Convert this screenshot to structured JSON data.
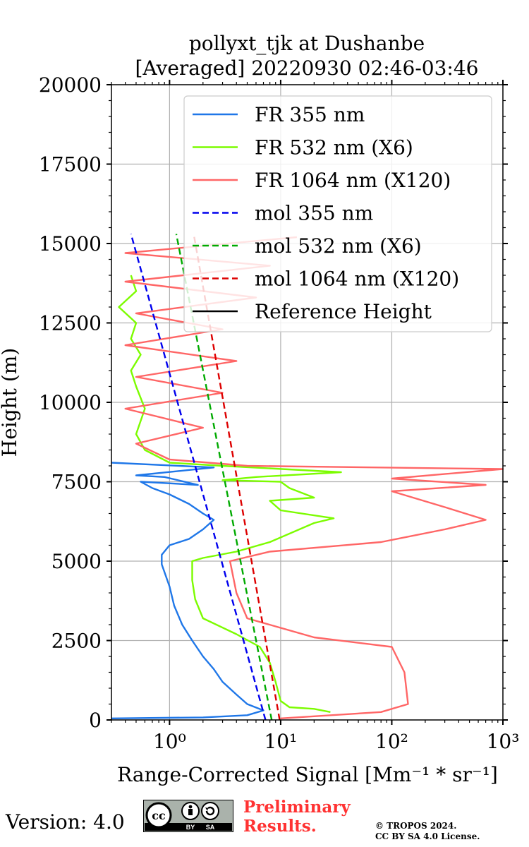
{
  "chart_data": {
    "type": "line",
    "title": "pollyxt_tjk at Dushanbe",
    "subtitle": "[Averaged] 20220930 02:46-03:46",
    "xlabel": "Range-Corrected Signal [Mm⁻¹ * sr⁻¹]",
    "ylabel": "Height (m)",
    "xscale": "log",
    "xlim": [
      0.3,
      1000
    ],
    "ylim": [
      0,
      20000
    ],
    "xticks": [
      {
        "value": 1,
        "label": "10⁰"
      },
      {
        "value": 10,
        "label": "10¹"
      },
      {
        "value": 100,
        "label": "10²"
      },
      {
        "value": 1000,
        "label": "10³"
      }
    ],
    "yticks": [
      0,
      2500,
      5000,
      7500,
      10000,
      12500,
      15000,
      17500,
      20000
    ],
    "grid": true,
    "legend_position": "upper right",
    "series": [
      {
        "name": "FR 355 nm",
        "color": "#1f77e8",
        "style": "solid",
        "points": [
          [
            0.3,
            50
          ],
          [
            2,
            80
          ],
          [
            5,
            150
          ],
          [
            7,
            300
          ],
          [
            5,
            500
          ],
          [
            4,
            800
          ],
          [
            3,
            1200
          ],
          [
            2.5,
            1600
          ],
          [
            2,
            2000
          ],
          [
            1.6,
            2500
          ],
          [
            1.3,
            3000
          ],
          [
            1.1,
            3600
          ],
          [
            1,
            4200
          ],
          [
            0.85,
            4900
          ],
          [
            0.85,
            5200
          ],
          [
            1,
            5500
          ],
          [
            1.5,
            5700
          ],
          [
            2,
            6000
          ],
          [
            2.5,
            6300
          ],
          [
            2,
            6500
          ],
          [
            1.5,
            6800
          ],
          [
            1,
            7100
          ],
          [
            0.7,
            7300
          ],
          [
            0.55,
            7500
          ],
          [
            1.8,
            7400
          ],
          [
            0.9,
            7650
          ],
          [
            0.5,
            7700
          ],
          [
            2.5,
            7950
          ],
          [
            0.3,
            8100
          ]
        ]
      },
      {
        "name": "FR 532 nm (X6)",
        "color": "#7cfc00",
        "style": "solid",
        "points": [
          [
            28,
            250
          ],
          [
            20,
            350
          ],
          [
            12,
            400
          ],
          [
            10,
            600
          ],
          [
            9,
            1200
          ],
          [
            8,
            1800
          ],
          [
            6.5,
            2300
          ],
          [
            4,
            2700
          ],
          [
            2,
            3200
          ],
          [
            1.7,
            3800
          ],
          [
            1.6,
            4400
          ],
          [
            1.6,
            5000
          ],
          [
            2,
            5100
          ],
          [
            4,
            5300
          ],
          [
            8,
            5600
          ],
          [
            20,
            6200
          ],
          [
            30,
            6350
          ],
          [
            10,
            6600
          ],
          [
            8,
            6900
          ],
          [
            20,
            7000
          ],
          [
            12,
            7300
          ],
          [
            10,
            7500
          ],
          [
            3,
            7550
          ],
          [
            6,
            7650
          ],
          [
            35,
            7800
          ],
          [
            3,
            8000
          ],
          [
            1,
            8100
          ],
          [
            0.6,
            8500
          ],
          [
            0.5,
            9000
          ],
          [
            0.6,
            9800
          ],
          [
            0.5,
            10500
          ],
          [
            0.45,
            11000
          ],
          [
            0.55,
            11500
          ],
          [
            0.45,
            12000
          ],
          [
            0.5,
            12500
          ],
          [
            0.35,
            13000
          ],
          [
            0.5,
            13500
          ],
          [
            0.45,
            14000
          ]
        ]
      },
      {
        "name": "FR 1064 nm (X120)",
        "color": "#ff6666",
        "style": "solid",
        "points": [
          [
            10,
            50
          ],
          [
            80,
            250
          ],
          [
            140,
            500
          ],
          [
            130,
            1500
          ],
          [
            100,
            2300
          ],
          [
            20,
            2600
          ],
          [
            5,
            3200
          ],
          [
            4,
            4000
          ],
          [
            3.5,
            5000
          ],
          [
            8,
            5300
          ],
          [
            80,
            5600
          ],
          [
            300,
            6000
          ],
          [
            700,
            6300
          ],
          [
            300,
            6700
          ],
          [
            100,
            7200
          ],
          [
            700,
            7400
          ],
          [
            100,
            7600
          ],
          [
            1000,
            7900
          ],
          [
            5,
            8000
          ],
          [
            1,
            8200
          ],
          [
            0.5,
            8700
          ],
          [
            2,
            9200
          ],
          [
            0.4,
            9800
          ],
          [
            3,
            10300
          ],
          [
            0.5,
            10800
          ],
          [
            4,
            11300
          ],
          [
            0.4,
            11800
          ],
          [
            3,
            12300
          ],
          [
            0.5,
            12800
          ],
          [
            6,
            13300
          ],
          [
            0.4,
            13800
          ],
          [
            8,
            14300
          ],
          [
            0.4,
            14700
          ],
          [
            14,
            15200
          ]
        ]
      },
      {
        "name": "mol 355 nm",
        "color": "#0000ee",
        "style": "dashed",
        "points": [
          [
            7.3,
            0
          ],
          [
            0.45,
            15300
          ]
        ]
      },
      {
        "name": "mol 532 nm (X6)",
        "color": "#00aa00",
        "style": "dashed",
        "points": [
          [
            8.3,
            0
          ],
          [
            1.15,
            15300
          ]
        ]
      },
      {
        "name": "mol 1064 nm (X120)",
        "color": "#dd0000",
        "style": "dashed",
        "points": [
          [
            9.8,
            0
          ],
          [
            1.65,
            15300
          ]
        ]
      },
      {
        "name": "Reference Height",
        "color": "#000000",
        "style": "solid",
        "points": []
      }
    ]
  },
  "footer": {
    "version": "Version: 4.0",
    "cc_main": "cc",
    "cc_by": "BY",
    "cc_sa": "SA",
    "preliminary_line1": "Preliminary",
    "preliminary_line2": "Results.",
    "copyright_line1": "© TROPOS 2024.",
    "copyright_line2": "CC BY SA 4.0 License."
  }
}
